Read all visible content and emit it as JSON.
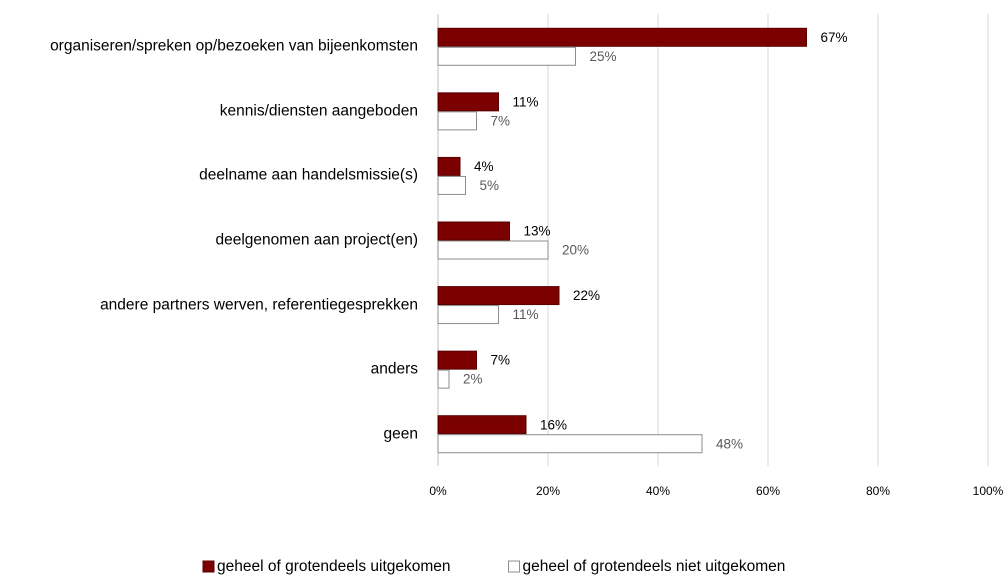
{
  "chart_data": {
    "type": "bar",
    "orientation": "horizontal",
    "categories": [
      "organiseren/spreken op/bezoeken van bijeenkomsten",
      "kennis/diensten aangeboden",
      "deelname aan handelsmissie(s)",
      "deelgenomen aan project(en)",
      "andere partners werven, referentiegesprekken",
      "anders",
      "geen"
    ],
    "series": [
      {
        "name": "geheel of grotendeels uitgekomen",
        "color": "#7b0000",
        "values": [
          67,
          11,
          4,
          13,
          22,
          7,
          16
        ],
        "value_labels": [
          "67%",
          "11%",
          "4%",
          "13%",
          "22%",
          "7%",
          "16%"
        ]
      },
      {
        "name": "geheel of grotendeels niet uitgekomen",
        "color": "#ffffff",
        "values": [
          25,
          7,
          5,
          20,
          11,
          2,
          48
        ],
        "value_labels": [
          "25%",
          "7%",
          "5%",
          "20%",
          "11%",
          "2%",
          "48%"
        ]
      }
    ],
    "xlim": [
      0,
      100
    ],
    "xticks": [
      {
        "value": 0,
        "label": "0%"
      },
      {
        "value": 20,
        "label": "20%"
      },
      {
        "value": 40,
        "label": "40%"
      },
      {
        "value": 60,
        "label": "60%"
      },
      {
        "value": 80,
        "label": "80%"
      },
      {
        "value": 100,
        "label": "100%"
      }
    ],
    "grid": true,
    "legend": "bottom"
  }
}
